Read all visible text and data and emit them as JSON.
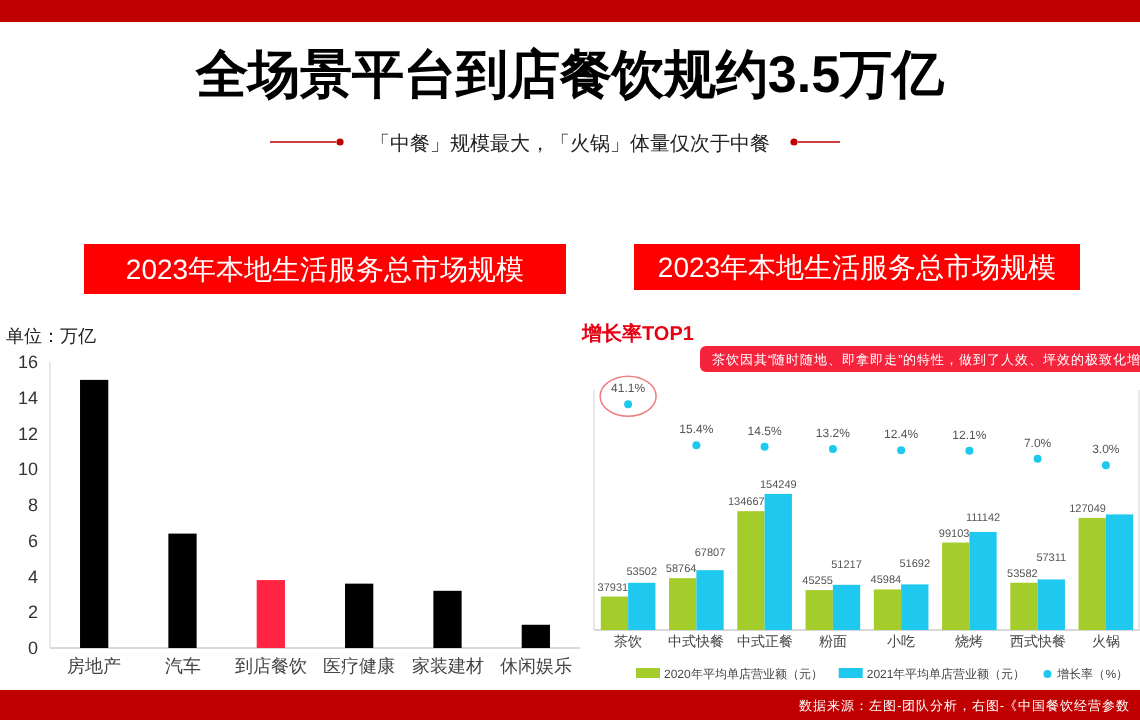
{
  "chart_data": [
    {
      "type": "other",
      "title": "全场景平台到店餐饮规约3.5万亿",
      "subtitle": "「中餐」规模最大，「火锅」体量仅次于中餐",
      "annotations": [
        "数据来源：左图-团队分析，右图-《中国餐饮经营参数"
      ]
    },
    {
      "type": "bar",
      "title": "2023年本地生活服务总市场规模",
      "ylabel": "单位：万亿",
      "categories": [
        "房地产",
        "汽车",
        "到店餐饮",
        "医疗健康",
        "家装建材",
        "休闲娱乐"
      ],
      "values": [
        15,
        6.4,
        3.8,
        3.6,
        3.2,
        1.3
      ],
      "colors": [
        "#000000",
        "#000000",
        "#ff2442",
        "#000000",
        "#000000",
        "#000000"
      ],
      "ylim": [
        0,
        16
      ],
      "yticks": [
        0,
        2,
        4,
        6,
        8,
        10,
        12,
        14,
        16
      ]
    },
    {
      "type": "bar",
      "title": "2023年本地生活服务总市场规模",
      "categories": [
        "茶饮",
        "中式快餐",
        "中式正餐",
        "粉面",
        "小吃",
        "烧烤",
        "西式快餐",
        "火锅"
      ],
      "series": [
        {
          "name": "2020年平均单店营业额（元）",
          "color": "#a4cc2a",
          "values": [
            37931,
            58764,
            134667,
            45255,
            45984,
            99103,
            53582,
            127049
          ],
          "value_labels": [
            "37931",
            "58764",
            "134667",
            "45255",
            "45984",
            "99103",
            "53582",
            "127049"
          ]
        },
        {
          "name": "2021年平均单店营业额（元）",
          "color": "#1fc8ee",
          "values": [
            53502,
            67807,
            154249,
            51217,
            51692,
            111142,
            57311,
            131000
          ],
          "value_labels": [
            "53502",
            "67807",
            "154249",
            "51217",
            "51692",
            "111142",
            "57311",
            null
          ]
        },
        {
          "name": "增长率（%）",
          "type": "scatter",
          "axis": "y2",
          "color": "#1fc8ee",
          "values": [
            41.1,
            15.4,
            14.5,
            13.2,
            12.4,
            12.1,
            7.0,
            3.0
          ],
          "value_labels": [
            "41.1%",
            "15.4%",
            "14.5%",
            "13.2%",
            "12.4%",
            "12.1%",
            "7.0%",
            "3.0%"
          ]
        }
      ],
      "ylim": [
        0,
        272000
      ],
      "y2lim": [
        -100,
        50
      ],
      "legend": "bottom",
      "annotations": [
        "增长率TOP1",
        "茶饮因其“随时随地、即拿即走”的特性，做到了人效、坪效的极致化增"
      ]
    }
  ]
}
